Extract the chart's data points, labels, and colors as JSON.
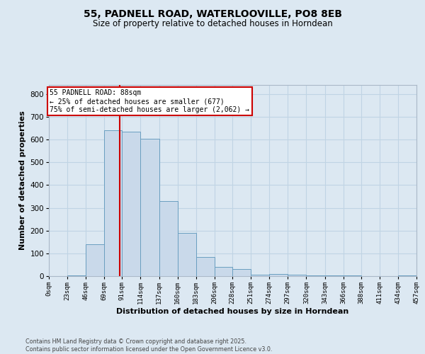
{
  "title_line1": "55, PADNELL ROAD, WATERLOOVILLE, PO8 8EB",
  "title_line2": "Size of property relative to detached houses in Horndean",
  "xlabel": "Distribution of detached houses by size in Horndean",
  "ylabel": "Number of detached properties",
  "bar_heights": [
    0,
    4,
    140,
    640,
    635,
    605,
    330,
    190,
    85,
    40,
    30,
    5,
    8,
    5,
    4,
    3,
    2,
    0,
    0,
    3
  ],
  "bin_edges": [
    0,
    23,
    46,
    69,
    91,
    114,
    137,
    160,
    183,
    206,
    228,
    251,
    274,
    297,
    320,
    343,
    366,
    388,
    411,
    434,
    457
  ],
  "tick_labels": [
    "0sqm",
    "23sqm",
    "46sqm",
    "69sqm",
    "91sqm",
    "114sqm",
    "137sqm",
    "160sqm",
    "183sqm",
    "206sqm",
    "228sqm",
    "251sqm",
    "274sqm",
    "297sqm",
    "320sqm",
    "343sqm",
    "366sqm",
    "388sqm",
    "411sqm",
    "434sqm",
    "457sqm"
  ],
  "bar_color": "#c9d9ea",
  "bar_edge_color": "#6a9fc0",
  "property_line_x": 88,
  "annotation_text_line1": "55 PADNELL ROAD: 88sqm",
  "annotation_text_line2": "← 25% of detached houses are smaller (677)",
  "annotation_text_line3": "75% of semi-detached houses are larger (2,062) →",
  "annotation_box_facecolor": "#ffffff",
  "annotation_box_edgecolor": "#cc0000",
  "red_line_color": "#cc0000",
  "grid_color": "#c0d4e4",
  "fig_bg": "#dce8f2",
  "ylim": [
    0,
    840
  ],
  "yticks": [
    0,
    100,
    200,
    300,
    400,
    500,
    600,
    700,
    800
  ],
  "footnote_line1": "Contains HM Land Registry data © Crown copyright and database right 2025.",
  "footnote_line2": "Contains public sector information licensed under the Open Government Licence v3.0."
}
